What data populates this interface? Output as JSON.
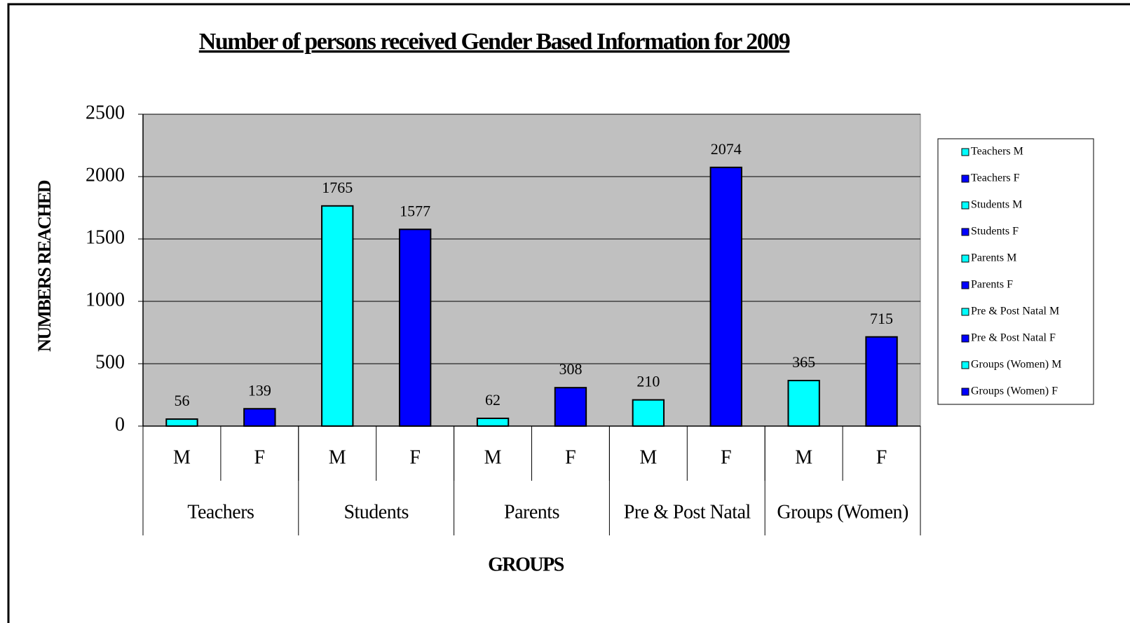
{
  "chart_data": {
    "type": "bar",
    "title": "Number of persons received Gender Based Information for 2009",
    "y_label": "NUMBERS REACHED",
    "x_label": "GROUPS",
    "categories": [
      "M",
      "F",
      "M",
      "F",
      "M",
      "F",
      "M",
      "F",
      "M",
      "F"
    ],
    "groups": [
      "Teachers",
      "Students",
      "Parents",
      "Pre & Post Natal",
      "Groups (Women)"
    ],
    "values": [
      56,
      139,
      1765,
      1577,
      62,
      308,
      210,
      2074,
      365,
      715
    ],
    "colors": [
      "#00FFFF",
      "#0000FF",
      "#00FFFF",
      "#0000FF",
      "#00FFFF",
      "#0000FF",
      "#00FFFF",
      "#0000FF",
      "#00FFFF",
      "#0000FF"
    ],
    "legend": [
      "Teachers M",
      "Teachers F",
      "Students M",
      "Students F",
      "Parents M",
      "Parents F",
      "Pre & Post Natal M",
      "Pre & Post Natal F",
      "Groups (Women) M",
      "Groups (Women) F"
    ],
    "legend_position": "right",
    "ylim": [
      0,
      2500
    ],
    "yticks": [
      0,
      500,
      1000,
      1500,
      2000,
      2500
    ],
    "grid": true,
    "plot_background": "#C0C0C0"
  }
}
